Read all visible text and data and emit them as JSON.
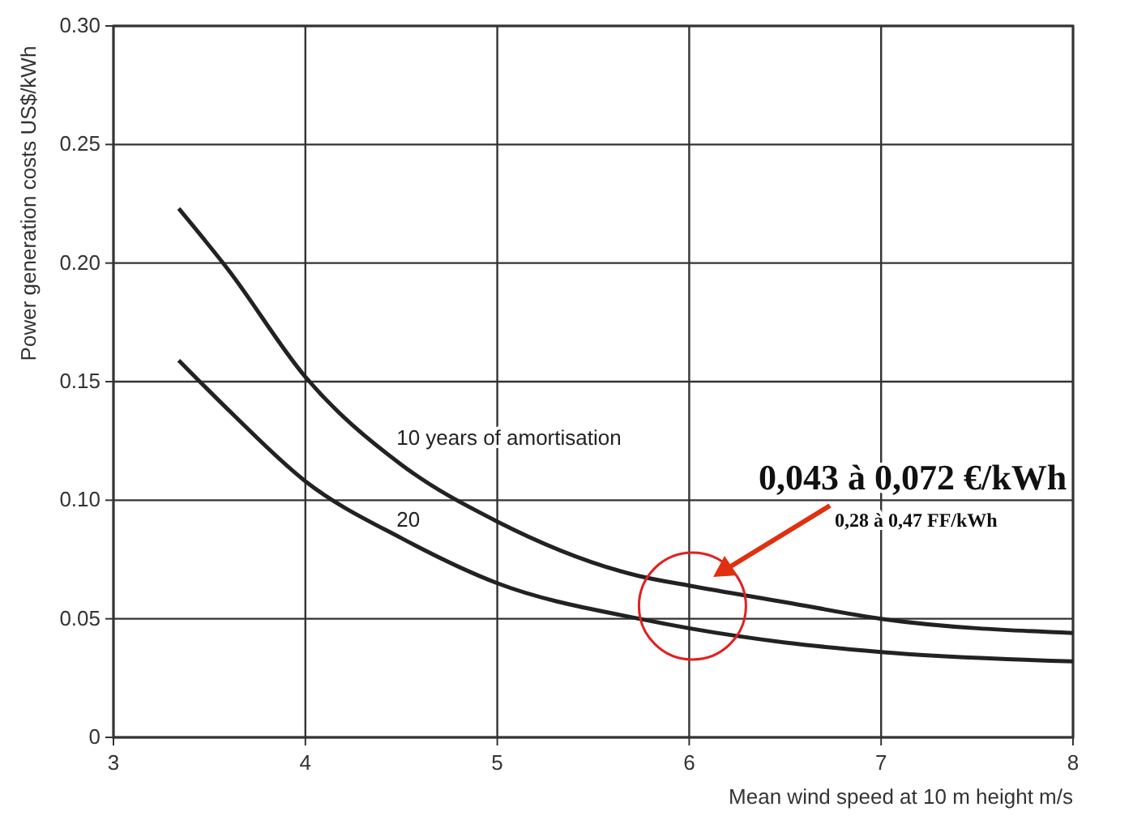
{
  "chart_data": {
    "type": "line",
    "xlabel": "Mean wind speed at 10 m height m/s",
    "ylabel": "Power generation costs US$/kWh",
    "xlim": [
      3,
      8
    ],
    "xticks": [
      3,
      4,
      5,
      6,
      7,
      8
    ],
    "ylim": [
      0,
      0.3
    ],
    "yticks": [
      0,
      0.05,
      {
        "value": 0.1,
        "label": "0.10"
      },
      0.15,
      {
        "value": 0.2,
        "label": "0.20"
      },
      0.25,
      {
        "value": 0.3,
        "label": "0.30"
      }
    ],
    "grid": true,
    "marker": "none",
    "line_style": "solid",
    "series": [
      {
        "name": "10 years of amortisation",
        "color": "#222222",
        "x": [
          3.34,
          3.6,
          4,
          4.5,
          5,
          5.74,
          6,
          6.5,
          7,
          8
        ],
        "values": [
          0.223,
          0.197,
          0.152,
          0.115,
          0.091,
          0.068,
          0.064,
          0.057,
          0.05,
          0.044
        ]
      },
      {
        "name": "20",
        "color": "#222222",
        "x": [
          3.34,
          3.6,
          4,
          4.5,
          5,
          5.74,
          6,
          6.5,
          7,
          8
        ],
        "values": [
          0.159,
          0.138,
          0.108,
          0.084,
          0.065,
          0.05,
          0.046,
          0.04,
          0.036,
          0.032
        ]
      }
    ],
    "annotations": [
      "0,043 à 0,072 €/kWh",
      "0,28 à 0,47 FF/kWh"
    ]
  }
}
